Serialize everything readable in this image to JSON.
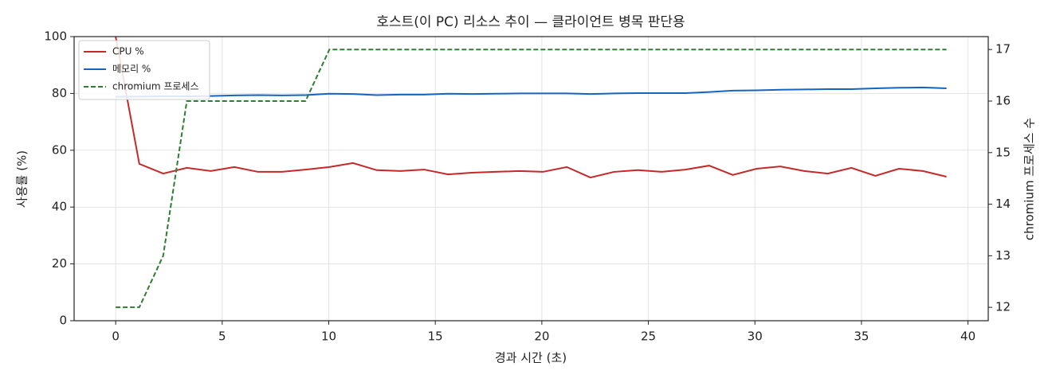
{
  "chart_data": {
    "type": "line",
    "title": "호스트(이 PC) 리소스 추이 — 클라이언트 병목 판단용",
    "xlabel": "경과 시간 (초)",
    "ylabel": "사용률 (%)",
    "y2label": "chromium 프로세스 수",
    "x": [
      0,
      1.11,
      2.23,
      3.34,
      4.46,
      5.57,
      6.68,
      7.8,
      8.91,
      10.03,
      11.14,
      12.25,
      13.37,
      14.48,
      15.6,
      16.71,
      17.82,
      18.94,
      20.05,
      21.17,
      22.28,
      23.39,
      24.51,
      25.62,
      26.74,
      27.85,
      28.96,
      30.08,
      31.19,
      32.31,
      33.42,
      34.53,
      35.65,
      36.76,
      37.88,
      38.99
    ],
    "series": [
      {
        "name": "CPU %",
        "color": "#c62828",
        "linestyle": "solid",
        "values": [
          100,
          55.2,
          51.8,
          53.8,
          52.7,
          54.1,
          52.4,
          52.4,
          53.2,
          54.1,
          55.5,
          53.0,
          52.7,
          53.2,
          51.5,
          52.1,
          52.4,
          52.7,
          52.4,
          54.1,
          50.4,
          52.4,
          53.0,
          52.4,
          53.2,
          54.6,
          51.3,
          53.5,
          54.3,
          52.7,
          51.8,
          53.8,
          51.0,
          53.5,
          52.7,
          50.7
        ]
      },
      {
        "name": "메모리 %",
        "color": "#1565c0",
        "linestyle": "solid",
        "values": [
          78.8,
          78.9,
          79.0,
          79.0,
          79.1,
          79.3,
          79.4,
          79.3,
          79.4,
          79.9,
          79.8,
          79.4,
          79.6,
          79.6,
          79.9,
          79.8,
          79.9,
          80.0,
          80.0,
          80.0,
          79.8,
          80.0,
          80.1,
          80.1,
          80.1,
          80.5,
          81.0,
          81.1,
          81.3,
          81.4,
          81.5,
          81.5,
          81.8,
          82.0,
          82.1,
          81.8
        ]
      },
      {
        "name": "chromium 프로세스",
        "color": "#2e7d32",
        "linestyle": "dashed",
        "axis": "y2",
        "values": [
          12,
          12,
          13,
          16,
          16,
          16,
          16,
          16,
          16,
          17,
          17,
          17,
          17,
          17,
          17,
          17,
          17,
          17,
          17,
          17,
          17,
          17,
          17,
          17,
          17,
          17,
          17,
          17,
          17,
          17,
          17,
          17,
          17,
          17,
          17,
          17
        ]
      }
    ],
    "xlim": [
      -1.95,
      40.95
    ],
    "xticks": [
      0,
      5,
      10,
      15,
      20,
      25,
      30,
      35,
      40
    ],
    "ylim": [
      0,
      100
    ],
    "yticks": [
      0,
      20,
      40,
      60,
      80,
      100
    ],
    "y2lim": [
      11.74,
      17.25
    ],
    "y2ticks": [
      12,
      13,
      14,
      15,
      16,
      17
    ],
    "grid": true,
    "legend": "upper-left"
  }
}
